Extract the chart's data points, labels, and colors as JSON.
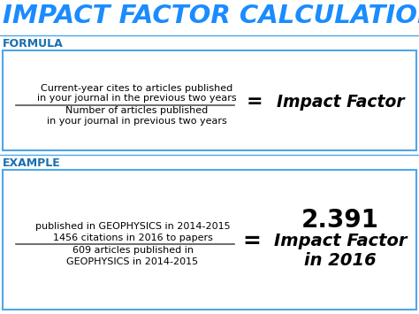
{
  "title": "IMPACT FACTOR CALCULATION",
  "title_color": "#1a8cff",
  "bg_color": "#ffffff",
  "section1_label": "FORMULA",
  "section2_label": "EXAMPLE",
  "section_label_color": "#1a6faf",
  "formula_numerator": "Current-year cites to articles published\nin your journal in the previous two years",
  "formula_denominator": "Number of articles published\nin your journal in previous two years",
  "formula_result": "Impact Factor",
  "ex_num_line1": "1456 citations in 2016 to papers",
  "ex_num_line2_pre": "published in ",
  "ex_num_line2_journal": "GEOPHYSICS",
  "ex_num_line2_post": " in 2014-2015",
  "ex_den_line1": "609 articles published in",
  "ex_den_line2_journal": "GEOPHYSICS",
  "ex_den_line2_post": " in 2014-2015",
  "example_result_line1": "2.391",
  "example_result_line2": "Impact Factor",
  "example_result_line3": "in 2016",
  "equals_sign": "=",
  "box_edge_color": "#4da6e8",
  "text_color": "#000000",
  "fraction_line_color": "#555555"
}
